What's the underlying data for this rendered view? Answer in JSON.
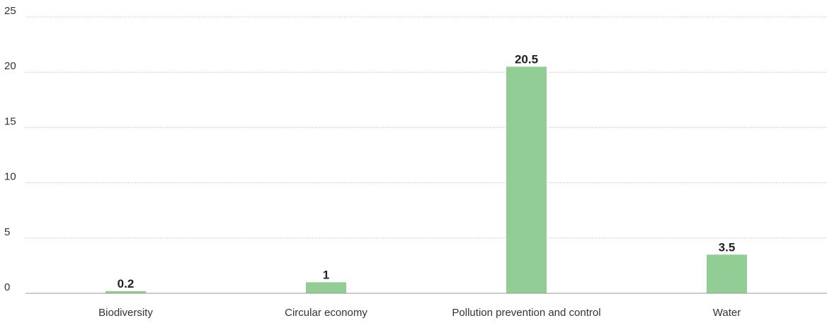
{
  "chart_data": {
    "type": "bar",
    "categories": [
      "Biodiversity",
      "Circular economy",
      "Pollution prevention and control",
      "Water"
    ],
    "values": [
      0.2,
      1,
      20.5,
      3.5
    ],
    "data_labels": [
      "0.2",
      "1",
      "20.5",
      "3.5"
    ],
    "y_ticks": [
      0,
      5,
      10,
      15,
      20,
      25
    ],
    "ylim": [
      0,
      25
    ],
    "grid": true,
    "bar_color": "#92cd96",
    "title": "",
    "xlabel": "",
    "ylabel": ""
  }
}
